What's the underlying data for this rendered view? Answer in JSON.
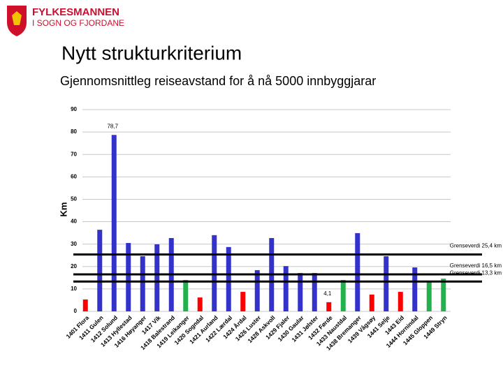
{
  "header": {
    "org": "FYLKESMANNEN",
    "suborg": "I SOGN OG FJORDANE",
    "title": "Nytt strukturkriterium"
  },
  "chart_data": {
    "type": "bar",
    "title": "Gjennomsnittleg reiseavstand for å nå 5000 innbyggjarar",
    "y_label": "Km",
    "categories": [
      "1401 Flora",
      "1411 Gulen",
      "1412 Solund",
      "1413 Hyllestad",
      "1416 Høyanger",
      "1417 Vik",
      "1418 Balestrand",
      "1419 Leikanger",
      "1420 Sogndal",
      "1421 Aurland",
      "1422 Lærdal",
      "1424 Årdal",
      "1426 Luster",
      "1428 Askvoll",
      "1429 Fjaler",
      "1430 Gaular",
      "1431 Jølster",
      "1432 Førde",
      "1433 Naustdal",
      "1438 Bremanger",
      "1439 Vågsøy",
      "1441 Selje",
      "1443 Eid",
      "1444 Hornindal",
      "1445 Gloppen",
      "1449 Stryn"
    ],
    "values": [
      5.3,
      36.4,
      78.7,
      30.5,
      24.6,
      29.9,
      32.7,
      14,
      6.2,
      34,
      28.7,
      8.7,
      18.4,
      32.7,
      20.2,
      17.1,
      17.1,
      4.1,
      14,
      34.9,
      7.5,
      24.6,
      8.7,
      19.6,
      13.4,
      14.6
    ],
    "value_labels": [
      null,
      null,
      "78,7",
      null,
      null,
      null,
      null,
      null,
      null,
      null,
      null,
      null,
      null,
      null,
      null,
      null,
      null,
      "4,1",
      null,
      null,
      null,
      null,
      null,
      null,
      null,
      null
    ],
    "colors": [
      "#ff0000",
      "#3333cc",
      "#3333cc",
      "#3333cc",
      "#3333cc",
      "#3333cc",
      "#3333cc",
      "#22b14c",
      "#ff0000",
      "#3333cc",
      "#3333cc",
      "#ff0000",
      "#3333cc",
      "#3333cc",
      "#3333cc",
      "#3333cc",
      "#3333cc",
      "#ff0000",
      "#22b14c",
      "#3333cc",
      "#ff0000",
      "#3333cc",
      "#ff0000",
      "#3333cc",
      "#22b14c",
      "#22b14c"
    ],
    "reference_lines": [
      {
        "value": 25.4,
        "label": "Grenseverdi 25,4 km"
      },
      {
        "value": 16.5,
        "label": "Grenseverdi 16,5 km"
      },
      {
        "value": 13.3,
        "label": "Grenseverdi 13,3 km"
      }
    ],
    "ylim": [
      0,
      90
    ],
    "yticks": [
      0,
      10,
      20,
      30,
      40,
      50,
      60,
      70,
      80,
      90
    ],
    "grid": true
  }
}
